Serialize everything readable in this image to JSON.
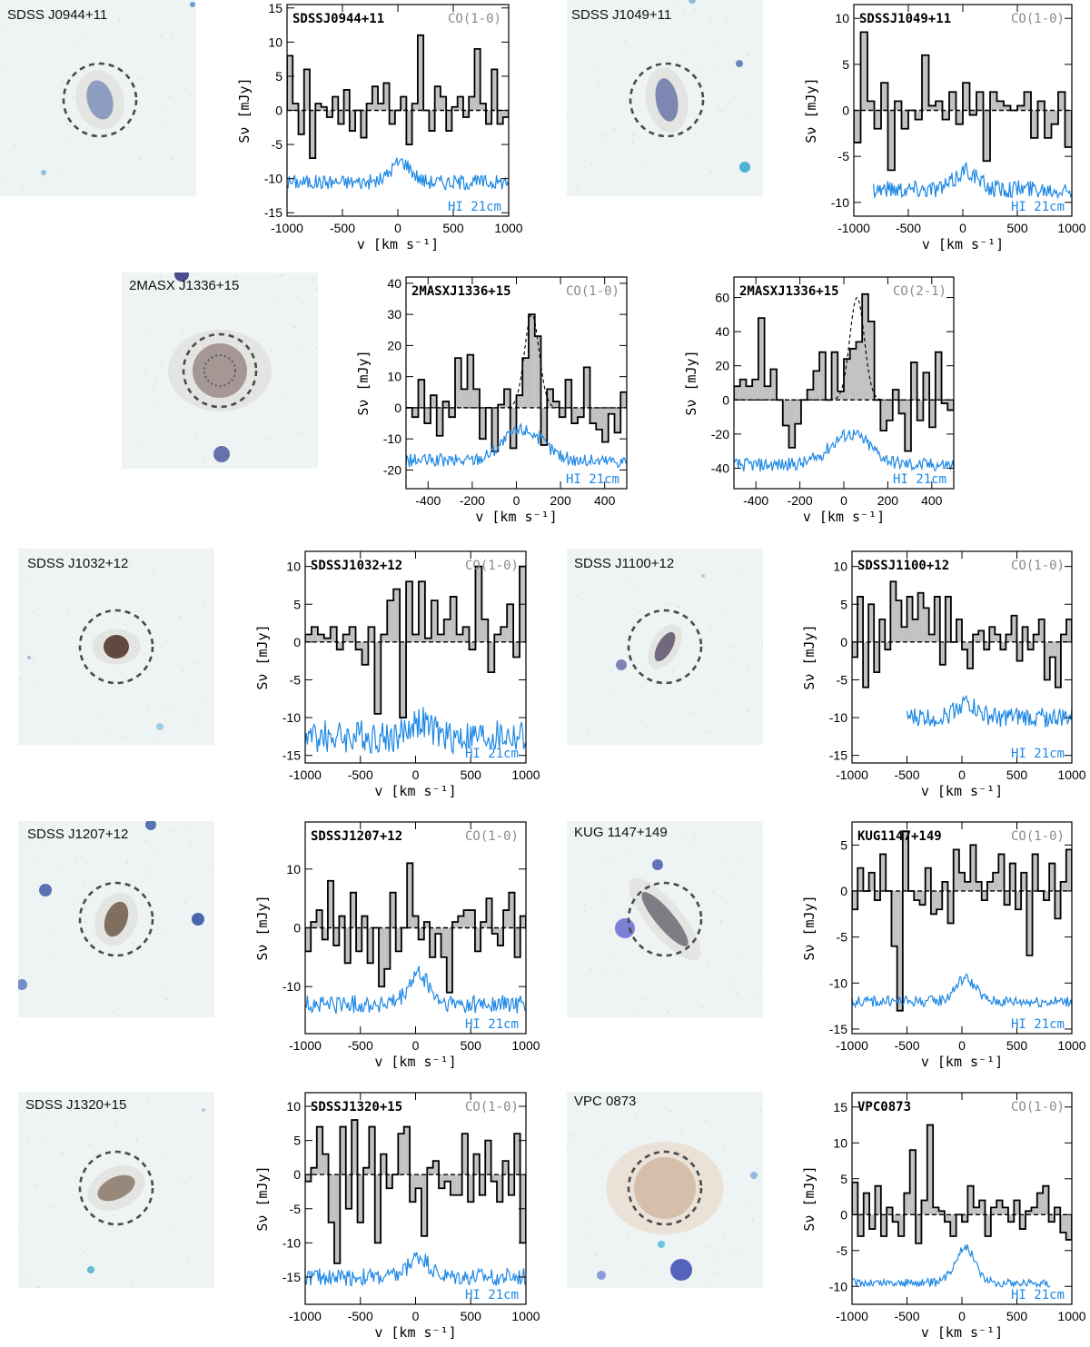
{
  "colors": {
    "co_fill": "#c2c2c2",
    "co_line": "#000000",
    "hi_line": "#1e88e5",
    "line_tag": "#8a8a8a",
    "image_bg": "#eef3f4"
  },
  "axis_labels": {
    "x": "v [km s⁻¹]",
    "y": "Sν [mJy]",
    "hi": "HI 21cm"
  },
  "galaxies": [
    {
      "name": "SDSS J0944+11"
    },
    {
      "name": "SDSS J1049+11"
    },
    {
      "name": "2MASX J1336+15"
    },
    {
      "name": "SDSS J1032+12"
    },
    {
      "name": "SDSS J1100+12"
    },
    {
      "name": "SDSS J1207+12"
    },
    {
      "name": "KUG 1147+149"
    },
    {
      "name": "SDSS J1320+15"
    },
    {
      "name": "VPC 0873"
    }
  ],
  "chart_data": [
    {
      "type": "line",
      "title": "SDSSJ0944+11",
      "line": "CO(1-0)",
      "xlim": [
        -1000,
        1000
      ],
      "ylim": [
        -15.5,
        15.5
      ],
      "xticks": [
        -1000,
        -500,
        0,
        500,
        1000
      ],
      "yticks": [
        -15,
        -10,
        -5,
        0,
        5,
        10,
        15
      ],
      "co": [
        8,
        1,
        -3.5,
        6,
        -7,
        1,
        0.5,
        -1,
        2,
        -2,
        3,
        -3,
        0,
        -4,
        1,
        3.5,
        1,
        4,
        -2,
        0,
        2,
        -5,
        1,
        11,
        0,
        -3,
        3.5,
        2,
        -3,
        0.5,
        2,
        -1,
        2,
        9,
        1,
        -2,
        6,
        -2,
        -1
      ]
    },
    {
      "type": "line",
      "title": "SDSSJ1049+11",
      "line": "CO(1-0)",
      "xlim": [
        -1000,
        1000
      ],
      "ylim": [
        -11.5,
        11.5
      ],
      "xticks": [
        -1000,
        -500,
        0,
        500,
        1000
      ],
      "yticks": [
        -10,
        -5,
        0,
        5,
        10
      ],
      "co": [
        -3.5,
        8.5,
        1,
        -2,
        3,
        -6.5,
        1,
        -2,
        0,
        -1,
        6,
        0.5,
        1,
        -1,
        2,
        -1.5,
        3,
        -0.5,
        2,
        -5.5,
        2,
        1,
        0.5,
        0,
        0.5,
        2,
        -3,
        1,
        -3,
        -1.5,
        2,
        -4
      ]
    },
    {
      "type": "line",
      "title": "2MASXJ1336+15",
      "line": "CO(1-0)",
      "xlim": [
        -500,
        500
      ],
      "ylim": [
        -26,
        42
      ],
      "xticks": [
        -400,
        -200,
        0,
        200,
        400
      ],
      "yticks": [
        -20,
        -10,
        0,
        10,
        20,
        30,
        40
      ],
      "co": [
        0,
        -3,
        9,
        -5,
        4,
        -9,
        2,
        -3,
        16,
        6,
        17,
        6,
        -10,
        0,
        -14,
        1,
        6,
        -13,
        4,
        16,
        30,
        23,
        -12,
        6,
        2,
        -3,
        9,
        -5,
        -3,
        13,
        -5,
        -7,
        -11,
        -2,
        -8,
        5
      ],
      "gauss": {
        "amp": 30,
        "center": 70,
        "sigma": 33
      }
    },
    {
      "type": "line",
      "title": "2MASXJ1336+15",
      "line": "CO(2-1)",
      "xlim": [
        -500,
        500
      ],
      "ylim": [
        -52,
        72
      ],
      "xticks": [
        -400,
        -200,
        0,
        200,
        400
      ],
      "yticks": [
        -40,
        -20,
        0,
        20,
        40,
        60
      ],
      "co": [
        8,
        12,
        8,
        12,
        48,
        8,
        18,
        0,
        -15,
        -28,
        -14,
        0,
        6,
        17,
        28,
        0,
        28,
        5,
        24,
        30,
        34,
        62,
        46,
        0,
        -18,
        -12,
        6,
        -8,
        -30,
        22,
        -12,
        16,
        -16,
        28,
        -2,
        -6
      ],
      "gauss": {
        "amp": 60,
        "center": 60,
        "sigma": 33
      }
    },
    {
      "type": "line",
      "title": "SDSSJ1032+12",
      "line": "CO(1-0)",
      "xlim": [
        -1000,
        1000
      ],
      "ylim": [
        -16,
        12
      ],
      "xticks": [
        -1000,
        -500,
        0,
        500,
        1000
      ],
      "yticks": [
        -15,
        -10,
        -5,
        0,
        5,
        10
      ],
      "co": [
        1,
        2,
        1,
        0.5,
        2,
        -1,
        1,
        2,
        -1,
        -3,
        2,
        -9.5,
        1,
        5.5,
        7,
        -10,
        8,
        1,
        8,
        0.5,
        5.5,
        1,
        3,
        6,
        1,
        2,
        -1,
        10,
        3,
        -4,
        1,
        2,
        5,
        -2,
        10
      ]
    },
    {
      "type": "line",
      "title": "SDSSJ1100+12",
      "line": "CO(1-0)",
      "xlim": [
        -1000,
        1000
      ],
      "ylim": [
        -16,
        12
      ],
      "xticks": [
        -1000,
        -500,
        0,
        500,
        1000
      ],
      "yticks": [
        -15,
        -10,
        -5,
        0,
        5,
        10
      ],
      "co": [
        -2,
        6,
        -6,
        5,
        -4,
        3,
        -1,
        8,
        5.5,
        2,
        6,
        3,
        6.5,
        4.5,
        1,
        6,
        -3,
        6,
        0,
        3,
        -1,
        -3.5,
        1,
        1.5,
        -1,
        2,
        1,
        -1,
        1,
        3.5,
        -2.5,
        2,
        -1,
        1,
        3,
        -5,
        -2,
        -6,
        1,
        3
      ]
    },
    {
      "type": "line",
      "title": "SDSSJ1207+12",
      "line": "CO(1-0)",
      "xlim": [
        -1000,
        1000
      ],
      "ylim": [
        -18,
        18
      ],
      "xticks": [
        -1000,
        -500,
        0,
        500,
        1000
      ],
      "yticks": [
        -10,
        0,
        10
      ],
      "co": [
        -4,
        1,
        3,
        -2,
        8,
        -3,
        2,
        -6,
        6,
        -4,
        2,
        -6,
        0,
        -10,
        -7,
        6,
        -4,
        0,
        11,
        2,
        -2,
        1,
        -5,
        -1,
        -5,
        -11,
        1,
        2,
        3,
        3,
        -4,
        1,
        5,
        -1,
        -3,
        3,
        6,
        -5,
        2
      ]
    },
    {
      "type": "line",
      "title": "KUG1147+149",
      "line": "CO(1-0)",
      "xlim": [
        -1000,
        1000
      ],
      "ylim": [
        -15.5,
        7.5
      ],
      "xticks": [
        -1000,
        -500,
        0,
        500,
        1000
      ],
      "yticks": [
        -15,
        -10,
        -5,
        0,
        5
      ],
      "co": [
        -2,
        2.5,
        0,
        2,
        -1,
        4,
        0,
        -6,
        -13,
        6.5,
        0,
        -1,
        -1.5,
        2.5,
        -2.5,
        -2,
        1,
        -3.5,
        4.5,
        2,
        1,
        5,
        1,
        -1,
        1,
        2,
        4,
        -1.5,
        3,
        -2,
        2,
        -7,
        4,
        0,
        -1,
        3,
        -3,
        1,
        4.5
      ]
    },
    {
      "type": "line",
      "title": "SDSSJ1320+15",
      "line": "CO(1-0)",
      "xlim": [
        -1000,
        1000
      ],
      "ylim": [
        -19,
        12
      ],
      "xticks": [
        -1000,
        -500,
        0,
        500,
        1000
      ],
      "yticks": [
        -15,
        -10,
        -5,
        0,
        5,
        10
      ],
      "co": [
        -1,
        1,
        7,
        3,
        -7,
        -13,
        7,
        -5,
        8,
        -7,
        1,
        7,
        -10,
        3,
        -2,
        0,
        6,
        7,
        -4,
        -2,
        -9,
        1,
        2,
        -2,
        -1,
        -3,
        -3,
        6,
        -4,
        3,
        -3,
        5,
        -1,
        -4,
        2,
        -3,
        6,
        -10
      ]
    },
    {
      "type": "line",
      "title": "VPC0873",
      "line": "CO(1-0)",
      "xlim": [
        -1000,
        1000
      ],
      "ylim": [
        -12.5,
        17
      ],
      "xticks": [
        -1000,
        -500,
        0,
        500,
        1000
      ],
      "yticks": [
        -10,
        -5,
        0,
        5,
        10,
        15
      ],
      "co": [
        4.5,
        -3,
        3,
        -2,
        4,
        -3,
        1,
        -1,
        -3,
        3,
        9,
        -4,
        2,
        12.5,
        1,
        0.5,
        -1,
        -3,
        0,
        -1,
        4,
        1,
        2,
        -3,
        1,
        2,
        1,
        -1,
        2,
        -2,
        0.5,
        1,
        3,
        4,
        -1,
        1,
        -2.5,
        -3.5
      ]
    }
  ]
}
